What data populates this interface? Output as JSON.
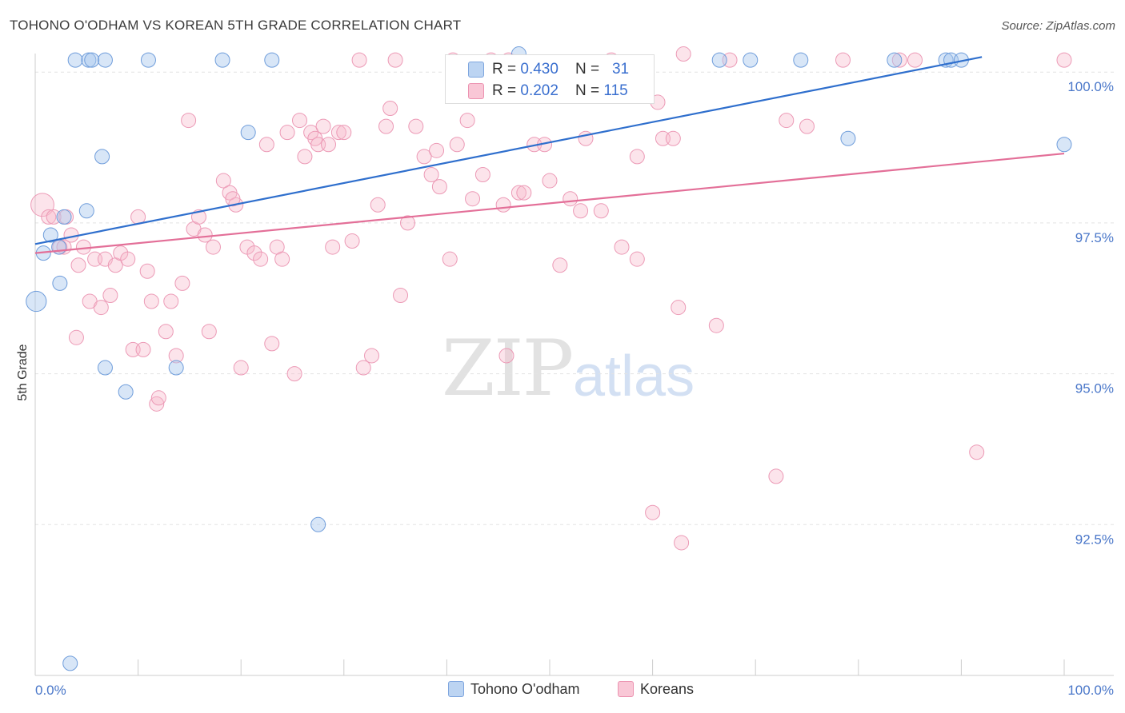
{
  "header": {
    "title": "TOHONO O'ODHAM VS KOREAN 5TH GRADE CORRELATION CHART",
    "source": "Source: ZipAtlas.com"
  },
  "watermark": {
    "zip": "ZIP",
    "atlas": "atlas"
  },
  "legend": {
    "rows": [
      {
        "r_label": "R = ",
        "r_value": "0.430",
        "n_label": "N = ",
        "n_value": "31"
      },
      {
        "r_label": "R = ",
        "r_value": "0.202",
        "n_label": "N = ",
        "n_value": "115"
      }
    ]
  },
  "bottom_legend": {
    "series1": "Tohono O'odham",
    "series2": "Koreans"
  },
  "chart_data": {
    "type": "scatter",
    "title": "TOHONO O'ODHAM VS KOREAN 5TH GRADE CORRELATION CHART",
    "xlabel": "",
    "ylabel": "5th Grade",
    "xlim": [
      0,
      100
    ],
    "ylim": [
      90.0,
      100.4
    ],
    "x_tick_labels": [
      "0.0%",
      "100.0%"
    ],
    "y_ticks": [
      92.5,
      95.0,
      97.5,
      100.0
    ],
    "y_tick_labels": [
      "92.5%",
      "95.0%",
      "97.5%",
      "100.0%"
    ],
    "grid": true,
    "legend_position": "top-center",
    "colors": {
      "series1": "#a9c7ee",
      "series1_line": "#2f6fcd",
      "series2": "#f6b8cb",
      "series2_line": "#e36f98"
    },
    "series": [
      {
        "name": "Tohono O'odham",
        "trend": {
          "x": [
            0,
            92
          ],
          "y": [
            97.15,
            100.25
          ]
        },
        "points": [
          {
            "x": 0.1,
            "y": 96.2,
            "s": 1.4
          },
          {
            "x": 0.8,
            "y": 97.0
          },
          {
            "x": 1.5,
            "y": 97.3
          },
          {
            "x": 2.3,
            "y": 97.1
          },
          {
            "x": 2.4,
            "y": 96.5
          },
          {
            "x": 2.8,
            "y": 97.6
          },
          {
            "x": 3.4,
            "y": 90.2
          },
          {
            "x": 3.9,
            "y": 100.2
          },
          {
            "x": 5.0,
            "y": 97.7
          },
          {
            "x": 5.2,
            "y": 100.2
          },
          {
            "x": 5.5,
            "y": 100.2
          },
          {
            "x": 6.5,
            "y": 98.6
          },
          {
            "x": 6.8,
            "y": 100.2
          },
          {
            "x": 6.8,
            "y": 95.1
          },
          {
            "x": 8.8,
            "y": 94.7
          },
          {
            "x": 11.0,
            "y": 100.2
          },
          {
            "x": 13.7,
            "y": 95.1
          },
          {
            "x": 18.2,
            "y": 100.2
          },
          {
            "x": 20.7,
            "y": 99.0
          },
          {
            "x": 23.0,
            "y": 100.2
          },
          {
            "x": 27.5,
            "y": 92.5
          },
          {
            "x": 47.0,
            "y": 100.3
          },
          {
            "x": 66.5,
            "y": 100.2
          },
          {
            "x": 69.5,
            "y": 100.2
          },
          {
            "x": 74.4,
            "y": 100.2
          },
          {
            "x": 83.5,
            "y": 100.2
          },
          {
            "x": 88.5,
            "y": 100.2
          },
          {
            "x": 89.0,
            "y": 100.2
          },
          {
            "x": 90.0,
            "y": 100.2
          },
          {
            "x": 79.0,
            "y": 98.9
          },
          {
            "x": 100.0,
            "y": 98.8
          }
        ]
      },
      {
        "name": "Koreans",
        "trend": {
          "x": [
            0,
            100
          ],
          "y": [
            97.0,
            98.65
          ]
        },
        "points": [
          {
            "x": 0.7,
            "y": 97.8,
            "s": 1.6
          },
          {
            "x": 1.3,
            "y": 97.6
          },
          {
            "x": 1.8,
            "y": 97.6
          },
          {
            "x": 2.4,
            "y": 97.1
          },
          {
            "x": 2.8,
            "y": 97.1
          },
          {
            "x": 3.0,
            "y": 97.6
          },
          {
            "x": 3.5,
            "y": 97.3
          },
          {
            "x": 4.0,
            "y": 95.6
          },
          {
            "x": 4.2,
            "y": 96.8
          },
          {
            "x": 4.7,
            "y": 97.1
          },
          {
            "x": 5.3,
            "y": 96.2
          },
          {
            "x": 5.8,
            "y": 96.9
          },
          {
            "x": 6.4,
            "y": 96.1
          },
          {
            "x": 6.8,
            "y": 96.9
          },
          {
            "x": 7.3,
            "y": 96.3
          },
          {
            "x": 7.8,
            "y": 96.8
          },
          {
            "x": 8.3,
            "y": 97.0
          },
          {
            "x": 9.0,
            "y": 96.9
          },
          {
            "x": 9.5,
            "y": 95.4
          },
          {
            "x": 10.0,
            "y": 97.6
          },
          {
            "x": 10.5,
            "y": 95.4
          },
          {
            "x": 10.9,
            "y": 96.7
          },
          {
            "x": 11.3,
            "y": 96.2
          },
          {
            "x": 11.8,
            "y": 94.5
          },
          {
            "x": 12.0,
            "y": 94.6
          },
          {
            "x": 12.7,
            "y": 95.7
          },
          {
            "x": 13.2,
            "y": 96.2
          },
          {
            "x": 13.7,
            "y": 95.3
          },
          {
            "x": 14.3,
            "y": 96.5
          },
          {
            "x": 14.9,
            "y": 99.2
          },
          {
            "x": 15.4,
            "y": 97.4
          },
          {
            "x": 15.9,
            "y": 97.6
          },
          {
            "x": 16.5,
            "y": 97.3
          },
          {
            "x": 16.9,
            "y": 95.7
          },
          {
            "x": 17.3,
            "y": 97.1
          },
          {
            "x": 18.3,
            "y": 98.2
          },
          {
            "x": 18.9,
            "y": 98.0
          },
          {
            "x": 19.5,
            "y": 97.8
          },
          {
            "x": 20.0,
            "y": 95.1
          },
          {
            "x": 20.6,
            "y": 97.1
          },
          {
            "x": 21.3,
            "y": 97.0
          },
          {
            "x": 21.9,
            "y": 96.9
          },
          {
            "x": 22.5,
            "y": 98.8
          },
          {
            "x": 23.0,
            "y": 95.5
          },
          {
            "x": 23.5,
            "y": 97.1
          },
          {
            "x": 24.0,
            "y": 96.9
          },
          {
            "x": 24.5,
            "y": 99.0
          },
          {
            "x": 25.2,
            "y": 95.0
          },
          {
            "x": 25.7,
            "y": 99.2
          },
          {
            "x": 26.2,
            "y": 98.6
          },
          {
            "x": 26.8,
            "y": 99.0
          },
          {
            "x": 27.2,
            "y": 98.9
          },
          {
            "x": 27.5,
            "y": 98.8
          },
          {
            "x": 28.0,
            "y": 99.1
          },
          {
            "x": 28.5,
            "y": 98.8
          },
          {
            "x": 28.9,
            "y": 97.1
          },
          {
            "x": 29.5,
            "y": 99.0
          },
          {
            "x": 30.0,
            "y": 99.0
          },
          {
            "x": 30.8,
            "y": 97.2
          },
          {
            "x": 31.5,
            "y": 100.2
          },
          {
            "x": 31.9,
            "y": 95.1
          },
          {
            "x": 32.7,
            "y": 95.3
          },
          {
            "x": 33.3,
            "y": 97.8
          },
          {
            "x": 34.1,
            "y": 99.1
          },
          {
            "x": 34.5,
            "y": 99.4
          },
          {
            "x": 35.0,
            "y": 100.2
          },
          {
            "x": 35.5,
            "y": 96.3
          },
          {
            "x": 36.2,
            "y": 97.5
          },
          {
            "x": 37.0,
            "y": 99.1
          },
          {
            "x": 37.8,
            "y": 98.6
          },
          {
            "x": 38.5,
            "y": 98.3
          },
          {
            "x": 39.0,
            "y": 98.7
          },
          {
            "x": 39.3,
            "y": 98.1
          },
          {
            "x": 40.3,
            "y": 96.9
          },
          {
            "x": 40.6,
            "y": 100.2
          },
          {
            "x": 41.0,
            "y": 98.8
          },
          {
            "x": 42.0,
            "y": 99.2
          },
          {
            "x": 42.5,
            "y": 97.9
          },
          {
            "x": 43.5,
            "y": 98.3
          },
          {
            "x": 44.3,
            "y": 100.2
          },
          {
            "x": 45.5,
            "y": 97.8
          },
          {
            "x": 45.8,
            "y": 95.3
          },
          {
            "x": 46.0,
            "y": 100.2
          },
          {
            "x": 47.0,
            "y": 98.0
          },
          {
            "x": 47.5,
            "y": 98.0
          },
          {
            "x": 48.5,
            "y": 98.8
          },
          {
            "x": 49.5,
            "y": 98.8
          },
          {
            "x": 50.0,
            "y": 98.2
          },
          {
            "x": 51.0,
            "y": 96.8
          },
          {
            "x": 52.0,
            "y": 97.9
          },
          {
            "x": 53.5,
            "y": 98.9
          },
          {
            "x": 55.0,
            "y": 97.7
          },
          {
            "x": 56.0,
            "y": 100.2
          },
          {
            "x": 57.0,
            "y": 97.1
          },
          {
            "x": 58.5,
            "y": 96.9
          },
          {
            "x": 58.5,
            "y": 98.6
          },
          {
            "x": 60.5,
            "y": 99.5
          },
          {
            "x": 61.0,
            "y": 98.9
          },
          {
            "x": 62.0,
            "y": 98.9
          },
          {
            "x": 62.5,
            "y": 96.1
          },
          {
            "x": 62.8,
            "y": 92.2
          },
          {
            "x": 63.0,
            "y": 100.3
          },
          {
            "x": 66.2,
            "y": 95.8
          },
          {
            "x": 67.5,
            "y": 100.2
          },
          {
            "x": 72.0,
            "y": 93.3
          },
          {
            "x": 73.0,
            "y": 99.2
          },
          {
            "x": 75.0,
            "y": 99.1
          },
          {
            "x": 78.5,
            "y": 100.2
          },
          {
            "x": 84.0,
            "y": 100.2
          },
          {
            "x": 85.5,
            "y": 100.2
          },
          {
            "x": 91.5,
            "y": 93.7
          },
          {
            "x": 100.0,
            "y": 100.2
          },
          {
            "x": 60.0,
            "y": 92.7
          },
          {
            "x": 53.0,
            "y": 97.7
          },
          {
            "x": 19.2,
            "y": 97.9
          }
        ]
      }
    ]
  }
}
